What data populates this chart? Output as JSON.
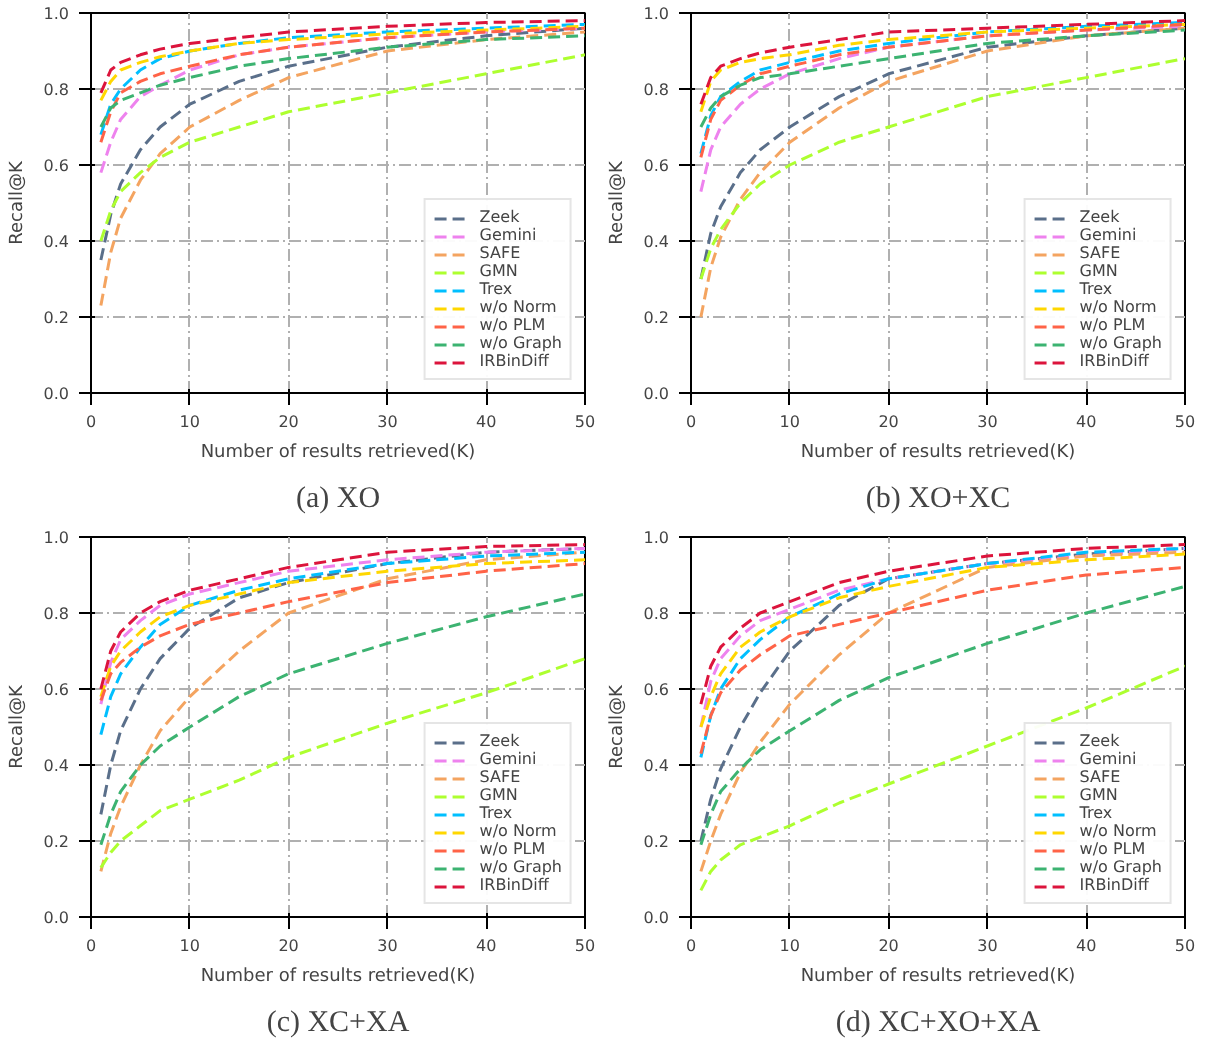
{
  "chart_data": [
    {
      "type": "line",
      "title": "(a) XO",
      "xlabel": "Number of results retrieved(K)",
      "ylabel": "Recall@K",
      "x": [
        1,
        2,
        3,
        5,
        7,
        10,
        15,
        20,
        30,
        40,
        50
      ],
      "xlim": [
        0,
        50
      ],
      "ylim": [
        0,
        1
      ],
      "xticks": [
        0,
        10,
        20,
        30,
        40,
        50
      ],
      "yticks": [
        {
          "value": 0,
          "label": "0.0"
        },
        {
          "value": 0.2,
          "label": "0.2"
        },
        {
          "value": 0.4,
          "label": "0.4"
        },
        {
          "value": 0.6,
          "label": "0.6"
        },
        {
          "value": 0.8,
          "label": "0.8"
        },
        {
          "value": 1,
          "label": "1.0"
        }
      ],
      "grid": true,
      "legend": "bottom right",
      "line_style": "dashed",
      "series": [
        {
          "name": "Zeek",
          "color": "#5a6f8a",
          "values": [
            0.35,
            0.47,
            0.55,
            0.64,
            0.7,
            0.76,
            0.82,
            0.86,
            0.91,
            0.94,
            0.96
          ]
        },
        {
          "name": "Gemini",
          "color": "#ee82ee",
          "values": [
            0.58,
            0.66,
            0.72,
            0.78,
            0.81,
            0.85,
            0.89,
            0.91,
            0.935,
            0.95,
            0.96
          ]
        },
        {
          "name": "SAFE",
          "color": "#f4a460",
          "values": [
            0.23,
            0.37,
            0.46,
            0.56,
            0.63,
            0.7,
            0.77,
            0.83,
            0.9,
            0.93,
            0.95
          ]
        },
        {
          "name": "GMN",
          "color": "#adff2f",
          "values": [
            0.4,
            0.48,
            0.53,
            0.58,
            0.62,
            0.66,
            0.7,
            0.74,
            0.79,
            0.84,
            0.89
          ]
        },
        {
          "name": "Trex",
          "color": "#00bfff",
          "values": [
            0.68,
            0.76,
            0.8,
            0.85,
            0.88,
            0.9,
            0.92,
            0.935,
            0.95,
            0.96,
            0.97
          ]
        },
        {
          "name": "w/o Norm",
          "color": "#ffd700",
          "values": [
            0.77,
            0.82,
            0.85,
            0.87,
            0.885,
            0.9,
            0.92,
            0.93,
            0.945,
            0.955,
            0.965
          ]
        },
        {
          "name": "w/o PLM",
          "color": "#ff6347",
          "values": [
            0.66,
            0.74,
            0.79,
            0.82,
            0.84,
            0.86,
            0.89,
            0.91,
            0.935,
            0.95,
            0.96
          ]
        },
        {
          "name": "w/o Graph",
          "color": "#3cb371",
          "values": [
            0.7,
            0.75,
            0.77,
            0.79,
            0.81,
            0.83,
            0.86,
            0.88,
            0.91,
            0.93,
            0.94
          ]
        },
        {
          "name": "IRBinDiff",
          "color": "#dc143c",
          "values": [
            0.79,
            0.85,
            0.87,
            0.89,
            0.905,
            0.92,
            0.935,
            0.95,
            0.965,
            0.975,
            0.98
          ]
        }
      ]
    },
    {
      "type": "line",
      "title": "(b) XO+XC",
      "xlabel": "Number of results retrieved(K)",
      "ylabel": "Recall@K",
      "x": [
        1,
        2,
        3,
        5,
        7,
        10,
        15,
        20,
        30,
        40,
        50
      ],
      "xlim": [
        0,
        50
      ],
      "ylim": [
        0,
        1
      ],
      "xticks": [
        0,
        10,
        20,
        30,
        40,
        50
      ],
      "yticks": [
        {
          "value": 0,
          "label": "0.0"
        },
        {
          "value": 0.2,
          "label": "0.2"
        },
        {
          "value": 0.4,
          "label": "0.4"
        },
        {
          "value": 0.6,
          "label": "0.6"
        },
        {
          "value": 0.8,
          "label": "0.8"
        },
        {
          "value": 1,
          "label": "1.0"
        }
      ],
      "grid": true,
      "legend": "bottom right",
      "line_style": "dashed",
      "series": [
        {
          "name": "Zeek",
          "color": "#5a6f8a",
          "values": [
            0.3,
            0.42,
            0.49,
            0.58,
            0.64,
            0.7,
            0.78,
            0.84,
            0.91,
            0.94,
            0.96
          ]
        },
        {
          "name": "Gemini",
          "color": "#ee82ee",
          "values": [
            0.53,
            0.64,
            0.7,
            0.76,
            0.8,
            0.84,
            0.88,
            0.91,
            0.94,
            0.955,
            0.965
          ]
        },
        {
          "name": "SAFE",
          "color": "#f4a460",
          "values": [
            0.2,
            0.33,
            0.41,
            0.51,
            0.58,
            0.66,
            0.75,
            0.82,
            0.9,
            0.94,
            0.96
          ]
        },
        {
          "name": "GMN",
          "color": "#adff2f",
          "values": [
            0.3,
            0.38,
            0.43,
            0.5,
            0.55,
            0.6,
            0.66,
            0.7,
            0.78,
            0.83,
            0.88
          ]
        },
        {
          "name": "Trex",
          "color": "#00bfff",
          "values": [
            0.63,
            0.73,
            0.78,
            0.82,
            0.85,
            0.87,
            0.9,
            0.92,
            0.95,
            0.965,
            0.975
          ]
        },
        {
          "name": "w/o Norm",
          "color": "#ffd700",
          "values": [
            0.74,
            0.82,
            0.85,
            0.87,
            0.88,
            0.89,
            0.915,
            0.93,
            0.95,
            0.96,
            0.97
          ]
        },
        {
          "name": "w/o PLM",
          "color": "#ff6347",
          "values": [
            0.62,
            0.72,
            0.77,
            0.81,
            0.84,
            0.86,
            0.89,
            0.91,
            0.94,
            0.955,
            0.97
          ]
        },
        {
          "name": "w/o Graph",
          "color": "#3cb371",
          "values": [
            0.7,
            0.75,
            0.78,
            0.81,
            0.83,
            0.84,
            0.86,
            0.88,
            0.92,
            0.94,
            0.955
          ]
        },
        {
          "name": "IRBinDiff",
          "color": "#dc143c",
          "values": [
            0.76,
            0.83,
            0.86,
            0.88,
            0.895,
            0.91,
            0.93,
            0.95,
            0.96,
            0.97,
            0.98
          ]
        }
      ]
    },
    {
      "type": "line",
      "title": "(c) XC+XA",
      "xlabel": "Number of results retrieved(K)",
      "ylabel": "Recall@K",
      "x": [
        1,
        2,
        3,
        5,
        7,
        10,
        15,
        20,
        30,
        40,
        50
      ],
      "xlim": [
        0,
        50
      ],
      "ylim": [
        0,
        1
      ],
      "xticks": [
        0,
        10,
        20,
        30,
        40,
        50
      ],
      "yticks": [
        {
          "value": 0,
          "label": "0.0"
        },
        {
          "value": 0.2,
          "label": "0.2"
        },
        {
          "value": 0.4,
          "label": "0.4"
        },
        {
          "value": 0.6,
          "label": "0.6"
        },
        {
          "value": 0.8,
          "label": "0.8"
        },
        {
          "value": 1,
          "label": "1.0"
        }
      ],
      "grid": true,
      "legend": "bottom right",
      "line_style": "dashed",
      "series": [
        {
          "name": "Zeek",
          "color": "#5a6f8a",
          "values": [
            0.27,
            0.4,
            0.49,
            0.6,
            0.68,
            0.76,
            0.84,
            0.88,
            0.93,
            0.96,
            0.97
          ]
        },
        {
          "name": "Gemini",
          "color": "#ee82ee",
          "values": [
            0.56,
            0.67,
            0.73,
            0.78,
            0.82,
            0.85,
            0.88,
            0.91,
            0.94,
            0.96,
            0.97
          ]
        },
        {
          "name": "SAFE",
          "color": "#f4a460",
          "values": [
            0.12,
            0.22,
            0.29,
            0.4,
            0.49,
            0.58,
            0.7,
            0.8,
            0.89,
            0.94,
            0.96
          ]
        },
        {
          "name": "GMN",
          "color": "#adff2f",
          "values": [
            0.13,
            0.17,
            0.2,
            0.24,
            0.28,
            0.31,
            0.36,
            0.42,
            0.51,
            0.59,
            0.68
          ]
        },
        {
          "name": "Trex",
          "color": "#00bfff",
          "values": [
            0.48,
            0.58,
            0.64,
            0.71,
            0.77,
            0.82,
            0.86,
            0.89,
            0.93,
            0.95,
            0.96
          ]
        },
        {
          "name": "w/o Norm",
          "color": "#ffd700",
          "values": [
            0.58,
            0.66,
            0.7,
            0.75,
            0.79,
            0.82,
            0.85,
            0.88,
            0.91,
            0.93,
            0.94
          ]
        },
        {
          "name": "w/o PLM",
          "color": "#ff6347",
          "values": [
            0.57,
            0.64,
            0.67,
            0.71,
            0.74,
            0.77,
            0.8,
            0.83,
            0.88,
            0.91,
            0.93
          ]
        },
        {
          "name": "w/o Graph",
          "color": "#3cb371",
          "values": [
            0.19,
            0.27,
            0.33,
            0.4,
            0.45,
            0.5,
            0.58,
            0.64,
            0.72,
            0.79,
            0.85
          ]
        },
        {
          "name": "IRBinDiff",
          "color": "#dc143c",
          "values": [
            0.6,
            0.7,
            0.75,
            0.8,
            0.83,
            0.86,
            0.89,
            0.92,
            0.96,
            0.975,
            0.98
          ]
        }
      ]
    },
    {
      "type": "line",
      "title": "(d) XC+XO+XA",
      "xlabel": "Number of results retrieved(K)",
      "ylabel": "Recall@K",
      "x": [
        1,
        2,
        3,
        5,
        7,
        10,
        15,
        20,
        30,
        40,
        50
      ],
      "xlim": [
        0,
        50
      ],
      "ylim": [
        0,
        1
      ],
      "xticks": [
        0,
        10,
        20,
        30,
        40,
        50
      ],
      "yticks": [
        {
          "value": 0,
          "label": "0.0"
        },
        {
          "value": 0.2,
          "label": "0.2"
        },
        {
          "value": 0.4,
          "label": "0.4"
        },
        {
          "value": 0.6,
          "label": "0.6"
        },
        {
          "value": 0.8,
          "label": "0.8"
        },
        {
          "value": 1,
          "label": "1.0"
        }
      ],
      "grid": true,
      "legend": "bottom right",
      "line_style": "dashed",
      "series": [
        {
          "name": "Zeek",
          "color": "#5a6f8a",
          "values": [
            0.2,
            0.31,
            0.39,
            0.5,
            0.59,
            0.7,
            0.82,
            0.89,
            0.93,
            0.955,
            0.97
          ]
        },
        {
          "name": "Gemini",
          "color": "#ee82ee",
          "values": [
            0.5,
            0.62,
            0.68,
            0.74,
            0.78,
            0.81,
            0.86,
            0.89,
            0.93,
            0.95,
            0.97
          ]
        },
        {
          "name": "SAFE",
          "color": "#f4a460",
          "values": [
            0.12,
            0.2,
            0.27,
            0.38,
            0.46,
            0.56,
            0.69,
            0.8,
            0.92,
            0.95,
            0.96
          ]
        },
        {
          "name": "GMN",
          "color": "#adff2f",
          "values": [
            0.07,
            0.12,
            0.15,
            0.19,
            0.21,
            0.24,
            0.3,
            0.35,
            0.45,
            0.55,
            0.66
          ]
        },
        {
          "name": "Trex",
          "color": "#00bfff",
          "values": [
            0.42,
            0.53,
            0.6,
            0.68,
            0.73,
            0.79,
            0.85,
            0.89,
            0.93,
            0.96,
            0.97
          ]
        },
        {
          "name": "w/o Norm",
          "color": "#ffd700",
          "values": [
            0.5,
            0.58,
            0.64,
            0.71,
            0.75,
            0.79,
            0.84,
            0.87,
            0.92,
            0.94,
            0.955
          ]
        },
        {
          "name": "w/o PLM",
          "color": "#ff6347",
          "values": [
            0.43,
            0.53,
            0.59,
            0.65,
            0.69,
            0.74,
            0.77,
            0.8,
            0.86,
            0.9,
            0.92
          ]
        },
        {
          "name": "w/o Graph",
          "color": "#3cb371",
          "values": [
            0.19,
            0.27,
            0.33,
            0.39,
            0.44,
            0.49,
            0.57,
            0.63,
            0.72,
            0.8,
            0.87
          ]
        },
        {
          "name": "IRBinDiff",
          "color": "#dc143c",
          "values": [
            0.56,
            0.66,
            0.71,
            0.76,
            0.8,
            0.83,
            0.88,
            0.91,
            0.95,
            0.97,
            0.98
          ]
        }
      ]
    }
  ]
}
